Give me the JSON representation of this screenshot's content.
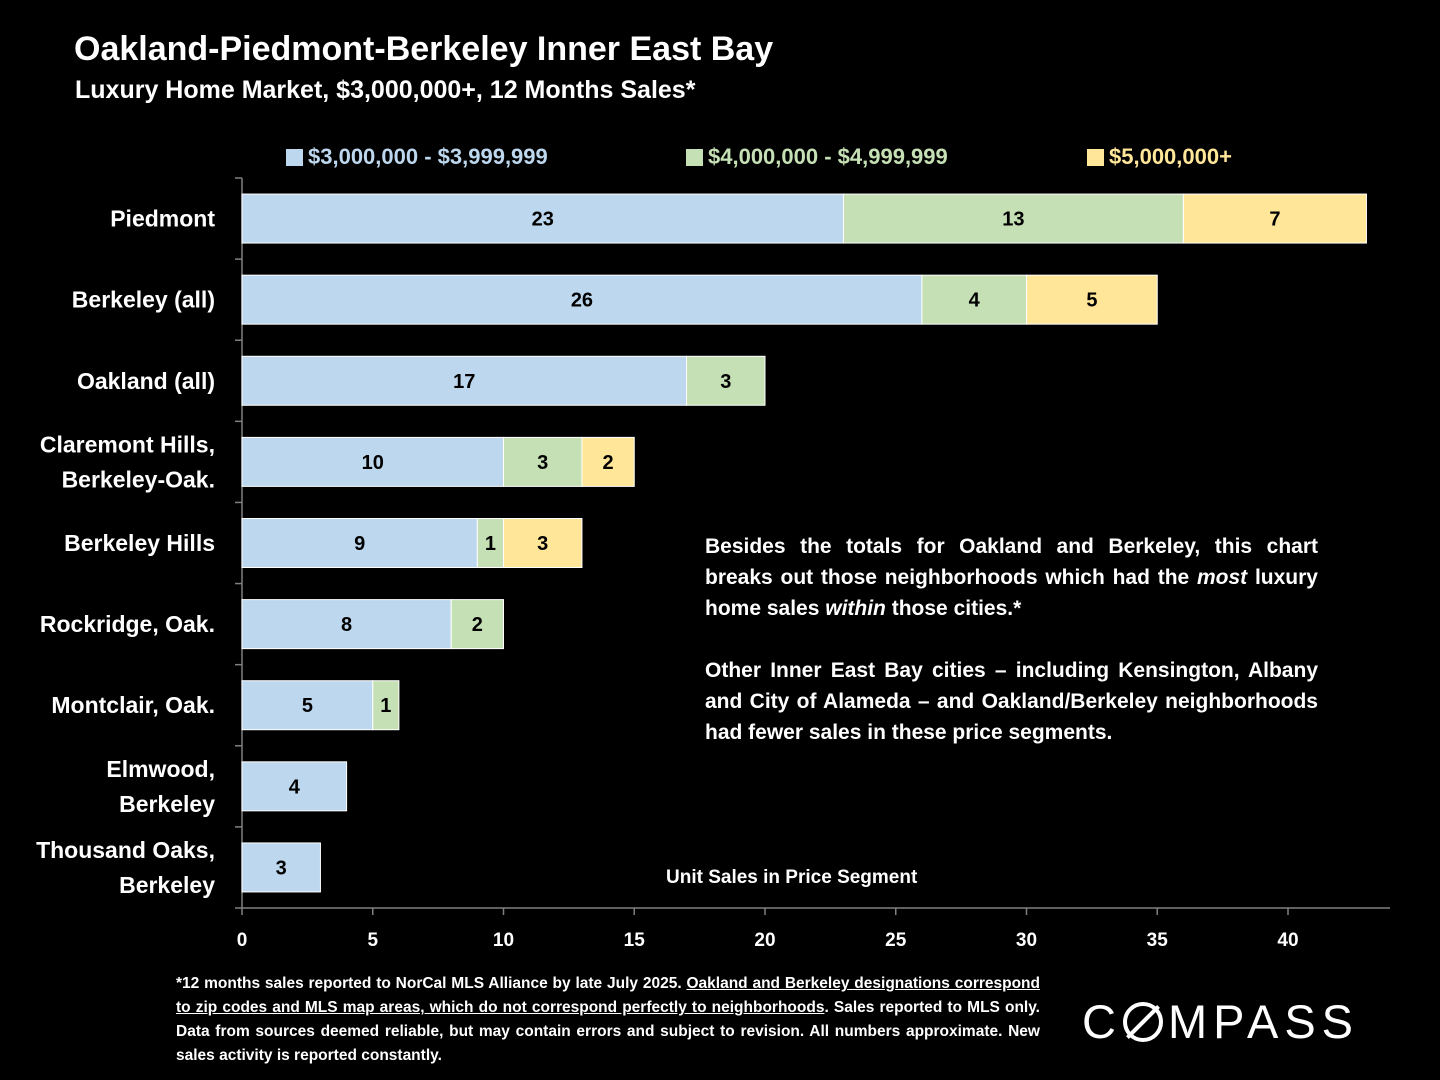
{
  "header": {
    "title": "Oakland-Piedmont-Berkeley Inner East Bay",
    "subtitle": "Luxury Home Market, $3,000,000+, 12 Months Sales*"
  },
  "annotation": {
    "p1_a": "Besides the totals for Oakland and Berkeley, this chart breaks out those neighborhoods which had the ",
    "p1_b": "most",
    "p1_c": " luxury home sales ",
    "p1_d": "within",
    "p1_e": " those cities.*",
    "p2": "Other Inner East Bay cities – including Kensington, Albany and City of Alameda – and Oakland/Berkeley neighborhoods had fewer sales in these price segments."
  },
  "footnote": {
    "part1": "*12 months sales reported to NorCal MLS Alliance by late July 2025. ",
    "part2": "Oakland and Berkeley designations correspond to zip codes and MLS map areas, which do not correspond perfectly to neighborhoods",
    "part3": ". Sales reported to MLS only. Data from  sources deemed reliable, but may contain errors and subject to revision. All numbers approximate. New sales activity is reported constantly."
  },
  "logo": {
    "before": "C",
    "after": "MPASS"
  },
  "chart_data": {
    "type": "bar",
    "orientation": "horizontal",
    "stacked": true,
    "title": "Oakland-Piedmont-Berkeley Inner East Bay",
    "subtitle": "Luxury Home Market, $3,000,000+, 12 Months Sales*",
    "xlabel": "Unit Sales in Price Segment",
    "ylabel": "",
    "xlim": [
      0,
      44
    ],
    "xticks": [
      0,
      5,
      10,
      15,
      20,
      25,
      30,
      35,
      40
    ],
    "grid": false,
    "legend_position": "top",
    "categories": [
      [
        "Piedmont"
      ],
      [
        "Berkeley (all)"
      ],
      [
        "Oakland (all)"
      ],
      [
        "Claremont Hills,",
        "Berkeley-Oak."
      ],
      [
        "Berkeley Hills"
      ],
      [
        "Rockridge, Oak."
      ],
      [
        "Montclair, Oak."
      ],
      [
        "Elmwood,",
        "Berkeley"
      ],
      [
        "Thousand Oaks,",
        "Berkeley"
      ]
    ],
    "series": [
      {
        "name": "$3,000,000 - $3,999,999",
        "color": "#bdd7ee",
        "legend_text_color": "#bdd7ee",
        "values": [
          23,
          26,
          17,
          10,
          9,
          8,
          5,
          4,
          3
        ]
      },
      {
        "name": "$4,000,000 - $4,999,999",
        "color": "#c5e0b4",
        "legend_text_color": "#c5e0b4",
        "values": [
          13,
          4,
          3,
          3,
          1,
          2,
          1,
          0,
          0
        ]
      },
      {
        "name": "$5,000,000+",
        "color": "#ffe699",
        "legend_text_color": "#ffe699",
        "values": [
          7,
          5,
          0,
          2,
          3,
          0,
          0,
          0,
          0
        ]
      }
    ]
  }
}
